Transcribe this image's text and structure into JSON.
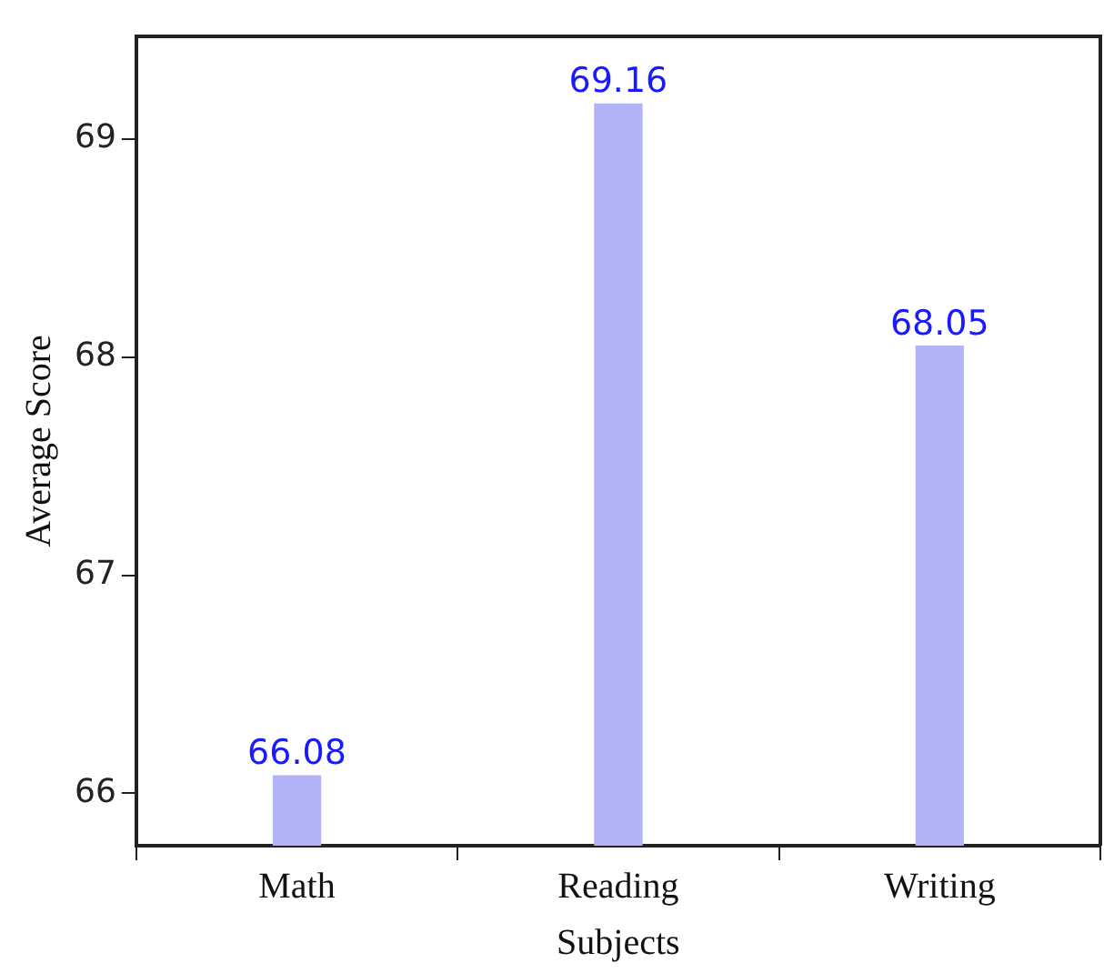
{
  "chart_data": {
    "type": "bar",
    "xlabel": "Subjects",
    "ylabel": "Average Score",
    "categories": [
      "Math",
      "Reading",
      "Writing"
    ],
    "values": [
      66.08,
      69.16,
      68.05
    ],
    "color": "#b3b3f7",
    "ylim": [
      65.76,
      69.47
    ],
    "yticks": [
      66,
      67,
      68,
      69
    ],
    "data_labels": true,
    "grid": false,
    "legend": false
  }
}
